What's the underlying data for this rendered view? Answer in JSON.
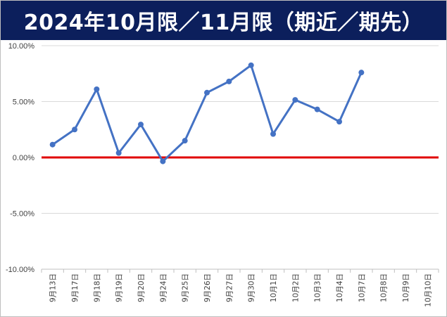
{
  "chart_data": {
    "type": "line",
    "title": "2024年10月限／11月限（期近／期先）",
    "categories": [
      "9月13日",
      "9月17日",
      "9月18日",
      "9月19日",
      "9月20日",
      "9月24日",
      "9月25日",
      "9月26日",
      "9月27日",
      "9月30日",
      "10月1日",
      "10月2日",
      "10月3日",
      "10月4日",
      "10月7日",
      "10月8日",
      "10月9日",
      "10月10日"
    ],
    "series": [
      {
        "values": [
          1.15,
          2.5,
          6.1,
          0.4,
          2.95,
          -0.35,
          1.5,
          5.8,
          6.8,
          8.25,
          2.1,
          5.15,
          4.3,
          3.2,
          7.6,
          null,
          null,
          null
        ],
        "color": "#4472c4"
      }
    ],
    "reference_line": {
      "value": 0,
      "color": "#e00000"
    },
    "ylim": [
      -10,
      10
    ],
    "yticks": [
      -10,
      -5,
      0,
      5,
      10
    ],
    "ytick_labels": [
      "-10.00%",
      "-5.00%",
      "0.00%",
      "5.00%",
      "10.00%"
    ],
    "grid": true,
    "xlabel": "",
    "ylabel": ""
  }
}
